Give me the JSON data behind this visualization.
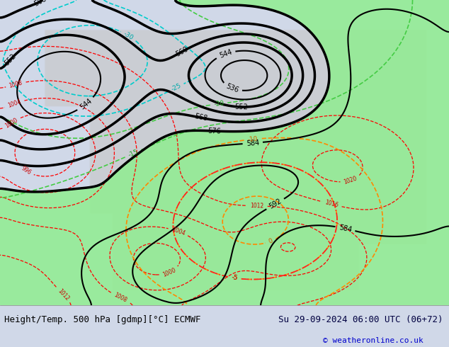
{
  "title_left": "Height/Temp. 500 hPa [gdmp][°C] ECMWF",
  "title_right": "Su 29-09-2024 06:00 UTC (06+72)",
  "copyright": "© weatheronline.co.uk",
  "bg_color": "#d0d8e8",
  "land_color": "#c8c8c8",
  "green_fill_color": "#90ee90",
  "bottom_bar_color": "#e8e8e8",
  "text_color_left": "#000000",
  "text_color_right": "#000040",
  "copyright_color": "#0000cc",
  "figsize": [
    6.34,
    4.9
  ],
  "dpi": 100
}
